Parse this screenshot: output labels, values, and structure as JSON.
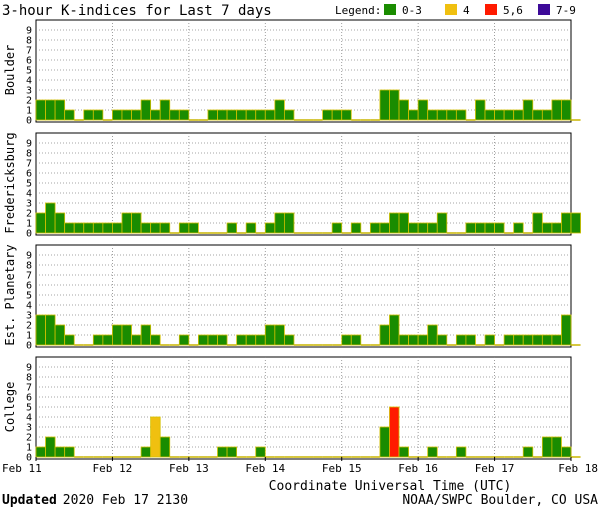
{
  "chart_data": {
    "type": "bar",
    "title": "3-hour K-indices for Last 7 days",
    "legend": {
      "label": "Legend:",
      "entries": [
        {
          "label": "0-3",
          "color": "#1a8c00"
        },
        {
          "label": "4",
          "color": "#f0c010"
        },
        {
          "label": "5,6",
          "color": "#ff1a00"
        },
        {
          "label": "7-9",
          "color": "#3d0a99"
        }
      ],
      "placement": "top-right"
    },
    "xlabel": "Coordinate Universal Time (UTC)",
    "x_ticks": [
      "Feb 11",
      "Feb 12",
      "Feb 13",
      "Feb 14",
      "Feb 15",
      "Feb 16",
      "Feb 17",
      "Feb 18"
    ],
    "y_ticks": [
      "0",
      "1",
      "2",
      "3",
      "4",
      "5",
      "6",
      "7",
      "8",
      "9"
    ],
    "ylim": [
      0,
      9
    ],
    "bins_per_day": 8,
    "grid": true,
    "series": [
      {
        "name": "Boulder",
        "values": [
          2,
          2,
          2,
          1,
          0,
          1,
          1,
          0,
          1,
          1,
          1,
          2,
          1,
          2,
          1,
          1,
          0,
          0,
          1,
          1,
          1,
          1,
          1,
          1,
          1,
          2,
          1,
          0,
          0,
          0,
          1,
          1,
          1,
          0,
          0,
          0,
          3,
          3,
          2,
          1,
          2,
          1,
          1,
          1,
          1,
          0,
          2,
          1,
          1,
          1,
          1,
          2,
          1,
          1,
          2,
          2,
          0
        ]
      },
      {
        "name": "Fredericksburg",
        "values": [
          2,
          3,
          2,
          1,
          1,
          1,
          1,
          1,
          1,
          2,
          2,
          1,
          1,
          1,
          0,
          1,
          1,
          0,
          0,
          0,
          1,
          0,
          1,
          0,
          1,
          2,
          2,
          0,
          0,
          0,
          0,
          1,
          0,
          1,
          0,
          1,
          1,
          2,
          2,
          1,
          1,
          1,
          2,
          0,
          0,
          1,
          1,
          1,
          1,
          0,
          1,
          0,
          2,
          1,
          1,
          2,
          2
        ]
      },
      {
        "name": "Est. Planetary",
        "values": [
          3,
          3,
          2,
          1,
          0,
          0,
          1,
          1,
          2,
          2,
          1,
          2,
          1,
          0,
          0,
          1,
          0,
          1,
          1,
          1,
          0,
          1,
          1,
          1,
          2,
          2,
          1,
          0,
          0,
          0,
          0,
          0,
          1,
          1,
          0,
          0,
          2,
          3,
          1,
          1,
          1,
          2,
          1,
          0,
          1,
          1,
          0,
          1,
          0,
          1,
          1,
          1,
          1,
          1,
          1,
          3,
          0
        ]
      },
      {
        "name": "College",
        "values": [
          1,
          2,
          1,
          1,
          0,
          0,
          0,
          0,
          0,
          0,
          0,
          1,
          4,
          2,
          0,
          0,
          0,
          0,
          0,
          1,
          1,
          0,
          0,
          1,
          0,
          0,
          0,
          0,
          0,
          0,
          0,
          0,
          0,
          0,
          0,
          0,
          3,
          5,
          1,
          0,
          0,
          1,
          0,
          0,
          1,
          0,
          0,
          0,
          0,
          0,
          0,
          1,
          0,
          2,
          2,
          1,
          0
        ]
      }
    ]
  },
  "footer": {
    "updated_label": "Updated",
    "updated_value": "2020 Feb 17 2130",
    "credit": "NOAA/SWPC Boulder, CO USA"
  }
}
